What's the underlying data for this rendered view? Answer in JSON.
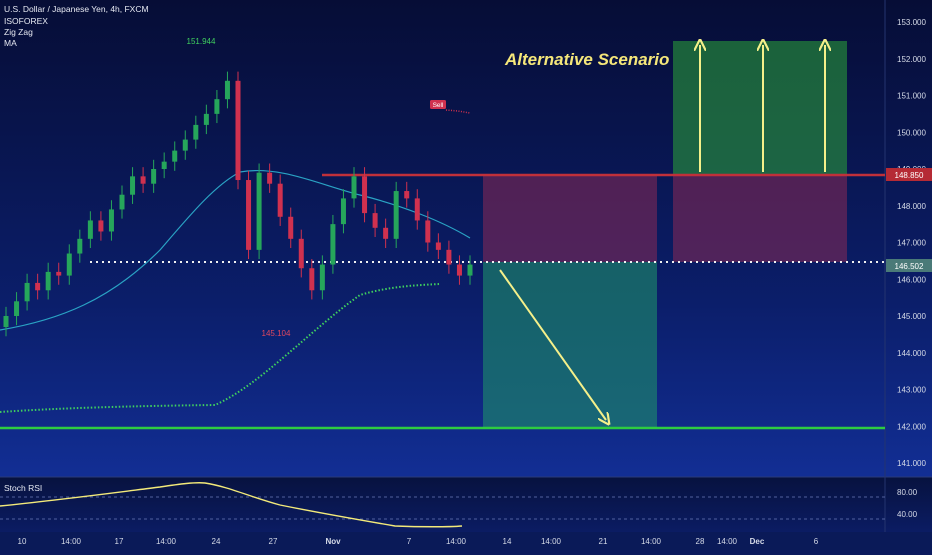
{
  "header": {
    "symbol": "U.S. Dollar / Japanese Yen, 4h, FXCM",
    "indicator_1": "ISOFOREX",
    "indicator_2": "Zig Zag",
    "indicator_3": "MA"
  },
  "annotations": {
    "scenario_title": "Alternative Scenario",
    "high_label": "151.944",
    "low_label": "145.104",
    "sell_label": "Sell"
  },
  "rsi": {
    "title": "Stoch RSI",
    "levels": [
      "80.00",
      "40.00"
    ]
  },
  "chart_data": {
    "type": "candlestick",
    "title": "U.S. Dollar / Japanese Yen, 4h, FXCM",
    "y_ticks": [
      "153.000",
      "152.000",
      "151.000",
      "150.000",
      "149.000",
      "148.000",
      "147.000",
      "146.000",
      "145.000",
      "144.000",
      "143.000",
      "142.000",
      "141.000"
    ],
    "x_ticks": [
      "10",
      "14:00",
      "17",
      "14:00",
      "24",
      "27",
      "Nov",
      "7",
      "14:00",
      "14",
      "14:00",
      "21",
      "14:00",
      "28",
      "14:00",
      "Dec",
      "6"
    ],
    "ylim": [
      140.6,
      153.3
    ],
    "price_labels": {
      "resistance": "148.850",
      "current": "146.502"
    },
    "levels": {
      "resistance": 148.85,
      "entry": 146.5,
      "target": 142.0
    },
    "colors": {
      "up": "#26a65b",
      "down": "#d0314f",
      "background": "#0b1a5e",
      "resistance": "#c0303a",
      "target": "#2ecc40",
      "arrow": "#f5f08a"
    },
    "series_close": [
      145.0,
      145.4,
      145.9,
      145.7,
      146.2,
      146.1,
      146.7,
      147.1,
      147.6,
      147.3,
      147.9,
      148.3,
      148.8,
      148.6,
      149.0,
      149.2,
      149.5,
      149.8,
      150.2,
      150.5,
      150.9,
      151.4,
      148.7,
      146.8,
      148.9,
      148.6,
      147.7,
      147.1,
      146.3,
      145.7,
      146.4,
      147.5,
      148.2,
      148.8,
      147.8,
      147.4,
      147.1,
      148.4,
      148.2,
      147.6,
      147.0,
      146.8,
      146.4,
      146.1,
      146.4
    ]
  }
}
